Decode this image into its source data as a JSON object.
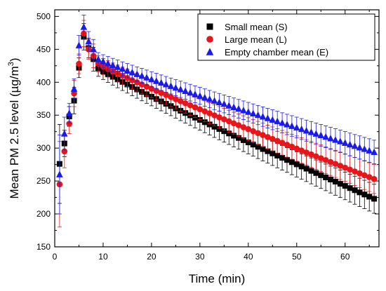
{
  "chart_data": {
    "type": "scatter",
    "xlabel": "Time (min)",
    "ylabel_main": "Mean PM 2.5 level (µg/m",
    "ylabel_sup": "3",
    "ylabel_close": ")",
    "xlim": [
      0,
      67
    ],
    "ylim": [
      150,
      510
    ],
    "xticks": [
      0,
      10,
      20,
      30,
      40,
      50,
      60
    ],
    "yticks": [
      150,
      200,
      250,
      300,
      350,
      400,
      450,
      500
    ],
    "grid": false,
    "legend_position": "top-right",
    "series": [
      {
        "name": "Small mean (S)",
        "marker": "square",
        "color": "#000000",
        "error_color": "#000000",
        "initial": [
          [
            1,
            276,
            60
          ],
          [
            2,
            307,
            20
          ],
          [
            3,
            348,
            15
          ],
          [
            4,
            372,
            20
          ],
          [
            5,
            422,
            15
          ],
          [
            6,
            469,
            20
          ],
          [
            7,
            452,
            15
          ],
          [
            8,
            435,
            18
          ]
        ],
        "decay": {
          "x_start": 9,
          "x_end": 66,
          "step": 1,
          "y_start": 421,
          "y_end": 223,
          "exponent": 0.93,
          "err_start": 12,
          "err_end": 22
        }
      },
      {
        "name": "Large mean (L)",
        "marker": "circle",
        "color": "#e8151b",
        "error_color": "#e8151b",
        "initial": [
          [
            1,
            245,
            65
          ],
          [
            2,
            295,
            25
          ],
          [
            3,
            337,
            15
          ],
          [
            4,
            383,
            20
          ],
          [
            5,
            428,
            15
          ],
          [
            6,
            474,
            20
          ],
          [
            7,
            450,
            15
          ],
          [
            8,
            440,
            18
          ]
        ],
        "decay": {
          "x_start": 9,
          "x_end": 66,
          "step": 1,
          "y_start": 428,
          "y_end": 253,
          "exponent": 0.93,
          "err_start": 12,
          "err_end": 22
        }
      },
      {
        "name": "Empty chamber mean (E)",
        "marker": "triangle",
        "color": "#1a1aee",
        "error_color": "#1a1aee",
        "initial": [
          [
            1,
            260,
            60
          ],
          [
            2,
            322,
            25
          ],
          [
            3,
            353,
            15
          ],
          [
            4,
            390,
            15
          ],
          [
            5,
            456,
            15
          ],
          [
            6,
            484,
            18
          ],
          [
            7,
            462,
            15
          ],
          [
            8,
            450,
            15
          ]
        ],
        "decay": {
          "x_start": 9,
          "x_end": 66,
          "step": 1,
          "y_start": 435,
          "y_end": 294,
          "exponent": 0.93,
          "err_start": 10,
          "err_end": 18
        }
      }
    ]
  }
}
